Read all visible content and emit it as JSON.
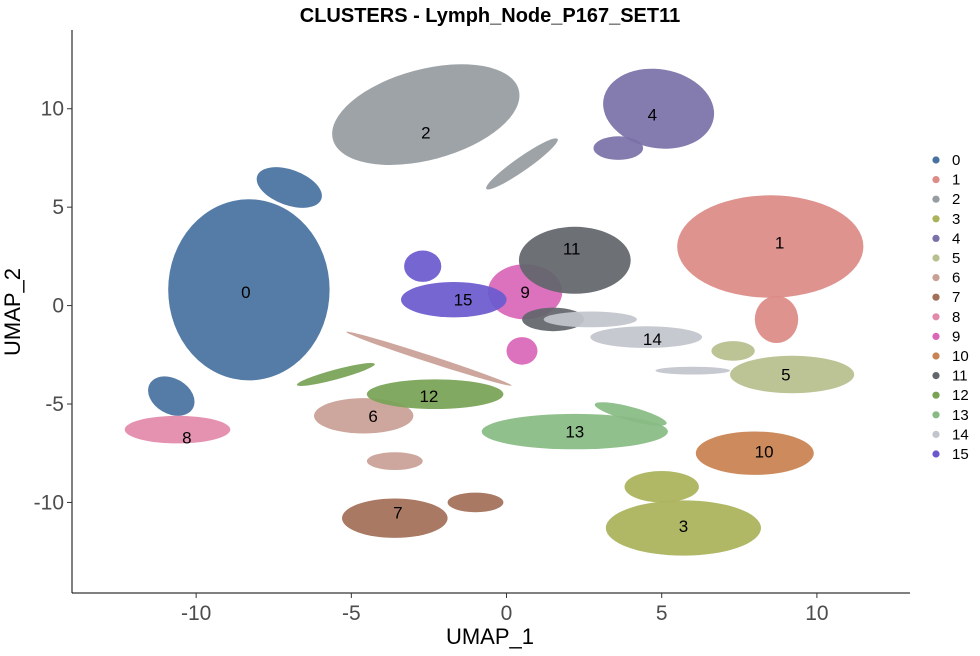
{
  "chart_data": {
    "type": "scatter",
    "title": "CLUSTERS - Lymph_Node_P167_SET11",
    "xlabel": "UMAP_1",
    "ylabel": "UMAP_2",
    "xlim": [
      -14,
      13
    ],
    "ylim": [
      -14.6,
      14
    ],
    "x_ticks": [
      -10,
      -5,
      0,
      5,
      10
    ],
    "x_tick_labels": [
      "-10",
      "-5",
      "0",
      "5",
      "10"
    ],
    "y_ticks": [
      -10,
      -5,
      0,
      5,
      10
    ],
    "y_tick_labels": [
      "-10",
      "-5",
      "0",
      "5",
      "10"
    ],
    "grid": false,
    "legend_position": "right",
    "clusters": [
      {
        "name": "0",
        "color": "#4872a0",
        "label_x": -8.4,
        "label_y": 0.7
      },
      {
        "name": "1",
        "color": "#dd8b86",
        "label_x": 8.8,
        "label_y": 3.2
      },
      {
        "name": "2",
        "color": "#979ca0",
        "label_x": -2.6,
        "label_y": 8.8
      },
      {
        "name": "3",
        "color": "#aab35a",
        "label_x": 5.7,
        "label_y": -11.2
      },
      {
        "name": "4",
        "color": "#7b71a8",
        "label_x": 4.7,
        "label_y": 9.7
      },
      {
        "name": "5",
        "color": "#b7c08e",
        "label_x": 9.0,
        "label_y": -3.5
      },
      {
        "name": "6",
        "color": "#c9a096",
        "label_x": -4.3,
        "label_y": -5.6
      },
      {
        "name": "7",
        "color": "#a26f57",
        "label_x": -3.5,
        "label_y": -10.5
      },
      {
        "name": "8",
        "color": "#e38aab",
        "label_x": -10.3,
        "label_y": -6.7
      },
      {
        "name": "9",
        "color": "#d966b8",
        "label_x": 0.6,
        "label_y": 0.7
      },
      {
        "name": "10",
        "color": "#c98251",
        "label_x": 8.3,
        "label_y": -7.4
      },
      {
        "name": "11",
        "color": "#62666c",
        "label_x": 2.1,
        "label_y": 2.9
      },
      {
        "name": "12",
        "color": "#78a355",
        "label_x": -2.5,
        "label_y": -4.6
      },
      {
        "name": "13",
        "color": "#88bb83",
        "label_x": 2.2,
        "label_y": -6.4
      },
      {
        "name": "14",
        "color": "#c3c5cd",
        "label_x": 4.7,
        "label_y": -1.7
      },
      {
        "name": "15",
        "color": "#6a5acd",
        "label_x": -1.4,
        "label_y": 0.3
      }
    ]
  }
}
